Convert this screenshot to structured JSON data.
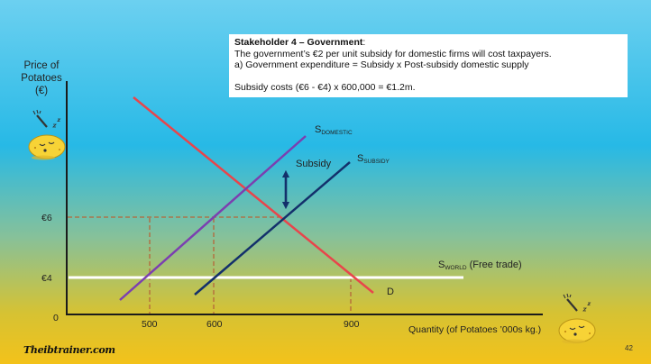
{
  "infobox": {
    "title": "Stakeholder 4 – Government",
    "title_suffix": ":",
    "line1": "The government’s €2 per unit subsidy for domestic firms will cost taxpayers.",
    "line2": "a)  Government expenditure = Subsidy x Post-subsidy domestic supply",
    "line3": "Subsidy costs (€6 - €4) x 600,000 = €1.2m."
  },
  "axes": {
    "y_title_line1": "Price of",
    "y_title_line2": "Potatoes",
    "y_title_line3": "(€)",
    "x_title": "Quantity (of Potatoes ’000s kg.)",
    "origin": "0"
  },
  "chart_data": {
    "type": "line",
    "y_ticks": [
      "€6",
      "€4"
    ],
    "x_ticks": [
      "500",
      "600",
      "900"
    ],
    "series": [
      {
        "name": "D",
        "color": "#e8454b"
      },
      {
        "name": "S",
        "subscript": "DOMESTIC",
        "color": "#7b3fb0"
      },
      {
        "name": "S",
        "subscript": "SUBSIDY",
        "color": "#13306b"
      },
      {
        "name": "S",
        "subscript": "WORLD",
        "suffix": " (Free trade)",
        "color": "#ffffff"
      }
    ],
    "annotations": {
      "subsidy_label": "Subsidy",
      "arrow_color": "#13306b"
    },
    "guide_color": "#b5663a"
  },
  "branding": {
    "logo_text": "Theibtrainer.com",
    "page_number": "42"
  },
  "icons": [
    "potato-with-fork-icon",
    "potato-with-fork-icon"
  ]
}
